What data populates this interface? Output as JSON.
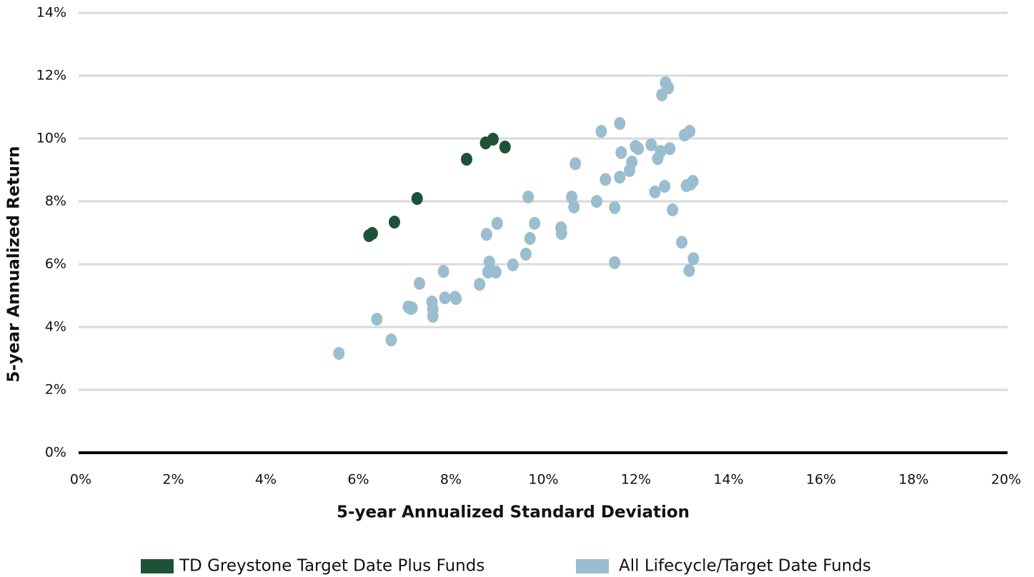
{
  "chart_data": {
    "type": "scatter",
    "x_label": "5-year Annualized Standard Deviation",
    "y_label": "5-year Annualized Return",
    "xlim": [
      0,
      20
    ],
    "ylim": [
      0,
      14
    ],
    "xticks": [
      {
        "value": 0,
        "label": "0%"
      },
      {
        "value": 2,
        "label": "2%"
      },
      {
        "value": 4,
        "label": "4%"
      },
      {
        "value": 6,
        "label": "6%"
      },
      {
        "value": 8,
        "label": "8%"
      },
      {
        "value": 10,
        "label": "10%"
      },
      {
        "value": 12,
        "label": "12%"
      },
      {
        "value": 14,
        "label": "14%"
      },
      {
        "value": 16,
        "label": "16%"
      },
      {
        "value": 18,
        "label": "18%"
      },
      {
        "value": 20,
        "label": "20%"
      }
    ],
    "yticks": [
      {
        "value": 0,
        "label": "0%"
      },
      {
        "value": 2,
        "label": "2%"
      },
      {
        "value": 4,
        "label": "4%"
      },
      {
        "value": 6,
        "label": "6%"
      },
      {
        "value": 8,
        "label": "8%"
      },
      {
        "value": 10,
        "label": "10%"
      },
      {
        "value": 12,
        "label": "12%"
      },
      {
        "value": 14,
        "label": "14%"
      }
    ],
    "grid": true,
    "legend": "bottom",
    "series": [
      {
        "name": "TD Greystone Target Date Plus Funds",
        "color": "#1e5237",
        "x": [
          6.23,
          6.3,
          6.78,
          7.27,
          8.34,
          8.75,
          8.91,
          9.17
        ],
        "values": [
          6.91,
          6.98,
          7.34,
          8.09,
          9.34,
          9.86,
          9.98,
          9.73
        ]
      },
      {
        "name": "All Lifecycle/Target Date Funds",
        "color": "#9bbdd0",
        "x": [
          5.58,
          6.4,
          6.71,
          7.08,
          7.13,
          7.16,
          7.32,
          7.59,
          7.61,
          7.61,
          7.84,
          7.87,
          8.09,
          8.11,
          8.62,
          8.77,
          8.83,
          8.8,
          8.97,
          9.0,
          9.34,
          9.62,
          9.67,
          9.71,
          9.81,
          10.38,
          10.39,
          10.61,
          10.66,
          10.69,
          11.15,
          11.25,
          11.34,
          11.54,
          11.54,
          11.65,
          11.65,
          11.68,
          11.86,
          11.91,
          11.99,
          12.05,
          12.33,
          12.41,
          12.47,
          12.53,
          12.56,
          12.62,
          12.64,
          12.7,
          12.73,
          12.79,
          12.99,
          13.05,
          13.09,
          13.15,
          13.16,
          13.18,
          13.23,
          13.24
        ],
        "values": [
          3.16,
          4.25,
          3.59,
          4.64,
          4.59,
          4.61,
          5.39,
          4.8,
          4.57,
          4.34,
          5.77,
          4.93,
          4.95,
          4.91,
          5.36,
          6.95,
          6.07,
          5.75,
          5.75,
          7.3,
          5.98,
          6.32,
          8.14,
          6.82,
          7.3,
          7.16,
          6.98,
          8.14,
          7.82,
          9.2,
          8.0,
          10.23,
          8.7,
          6.05,
          7.8,
          10.48,
          8.77,
          9.55,
          8.98,
          9.25,
          9.75,
          9.68,
          9.8,
          8.3,
          9.36,
          9.59,
          11.39,
          8.48,
          11.77,
          11.61,
          9.68,
          7.73,
          6.7,
          10.11,
          8.5,
          5.8,
          10.23,
          8.55,
          8.64,
          6.18
        ]
      }
    ]
  }
}
